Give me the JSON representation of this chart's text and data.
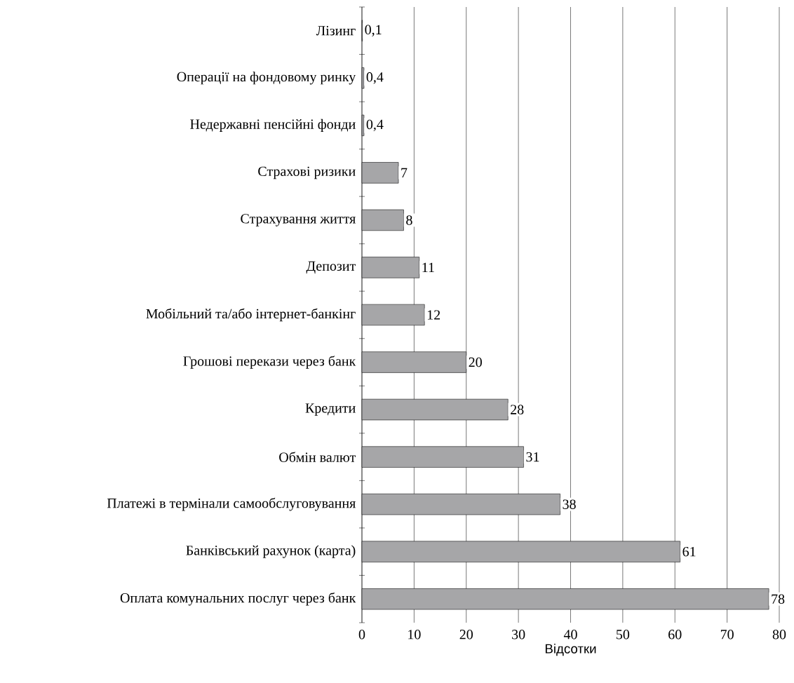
{
  "chart_data": {
    "type": "bar",
    "orientation": "horizontal",
    "xlabel": "Відсотки",
    "categories": [
      "Лізинг",
      "Операції на фондовому ринку",
      "Недержавні пенсійні фонди",
      "Страхові ризики",
      "Страхування життя",
      "Депозит",
      "Мобільний та/або інтернет-банкінг",
      "Грошові перекази через банк",
      "Кредити",
      "Обмін валют",
      "Платежі в термінали самообслуговування",
      "Банківський рахунок (карта)",
      "Оплата комунальних послуг через банк"
    ],
    "values": [
      0.1,
      0.4,
      0.4,
      7,
      8,
      11,
      12,
      20,
      28,
      31,
      38,
      61,
      78
    ],
    "value_labels": [
      "0,1",
      "0,4",
      "0,4",
      "7",
      "8",
      "11",
      "12",
      "20",
      "28",
      "31",
      "38",
      "61",
      "78"
    ],
    "color": "#a6a6a8",
    "xlim": [
      0,
      80
    ],
    "xticks": [
      0,
      10,
      20,
      30,
      40,
      50,
      60,
      70,
      80
    ],
    "grid": "x"
  }
}
